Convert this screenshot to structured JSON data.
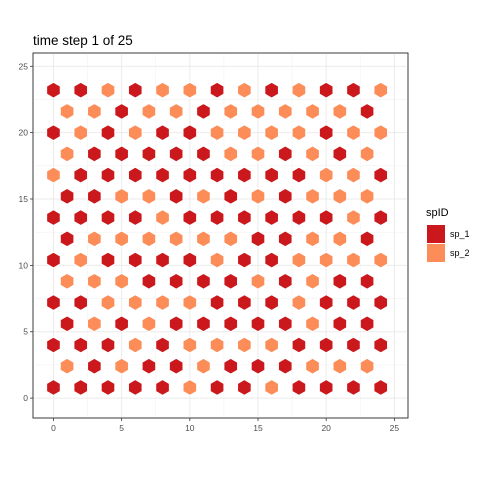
{
  "chart_data": {
    "type": "heatmap",
    "title": "time step 1 of 25",
    "xlabel": "",
    "ylabel": "",
    "xlim": [
      -1.5,
      26
    ],
    "ylim": [
      -1.5,
      26
    ],
    "x_ticks": [
      0,
      5,
      10,
      15,
      20,
      25
    ],
    "y_ticks": [
      0,
      5,
      10,
      15,
      20,
      25
    ],
    "grid": true,
    "legend": {
      "title": "spID",
      "position": "right",
      "entries": [
        {
          "label": "sp_1",
          "color": "#cb181d"
        },
        {
          "label": "sp_2",
          "color": "#fc8d59"
        }
      ]
    },
    "hex_grid": {
      "columns_even_rows": [
        0,
        2,
        4,
        6,
        8,
        10,
        12,
        14,
        16,
        18,
        20,
        22,
        24
      ],
      "columns_odd_rows": [
        1,
        3,
        5,
        7,
        9,
        11,
        13,
        15,
        17,
        19,
        21,
        23
      ],
      "rows_y": [
        0.8,
        2.4,
        4.0,
        5.6,
        7.2,
        8.8,
        10.4,
        12.0,
        13.6,
        15.2,
        16.8,
        18.4,
        20.0,
        21.6,
        23.2
      ],
      "cells": [
        "1111121121111",
        "212112111222",
        "1112122221111",
        "121211111211",
        "1122221112111",
        "222111121211",
        "1211112112222",
        "122222211221",
        "1111211111121",
        "112212121222",
        "2111111111221",
        "211111221212",
        "1212112222122",
        "221221222221",
        "1121221212112"
      ]
    }
  }
}
